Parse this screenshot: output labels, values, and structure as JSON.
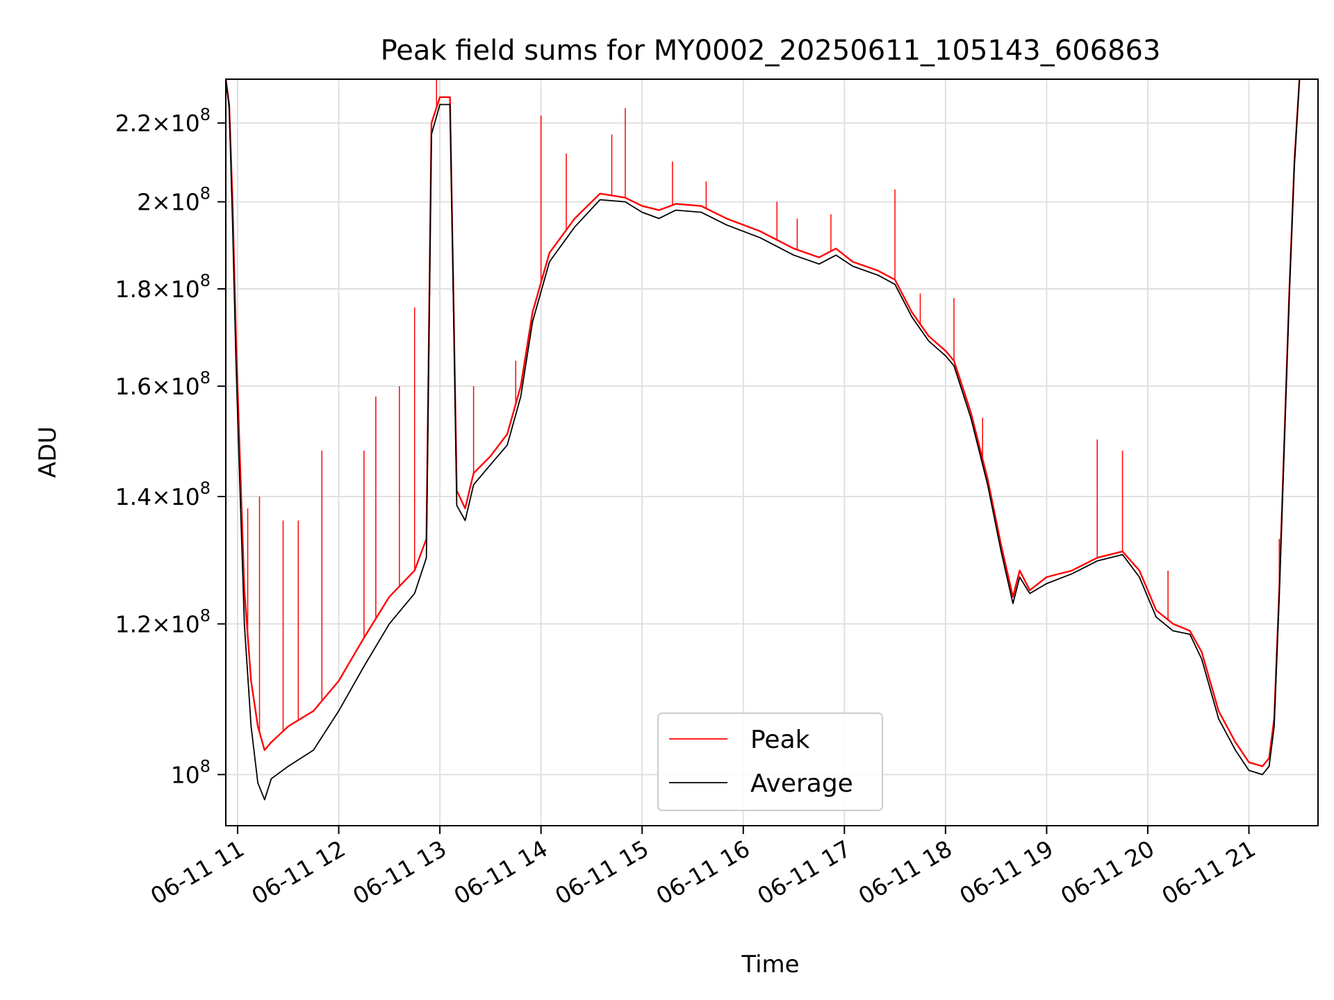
{
  "chart_data": {
    "type": "line",
    "title": "Peak field sums for MY0002_20250611_105143_606863",
    "xlabel": "Time",
    "ylabel": "ADU",
    "y_scale": "log",
    "grid": true,
    "legend_position": "lower-center",
    "xlim": [
      "2025-06-11 10:53",
      "2025-06-11 21:41"
    ],
    "ylim": [
      94000000,
      232000000
    ],
    "x_ticks": [
      {
        "label": "06-11 11",
        "x": "2025-06-11 11:00"
      },
      {
        "label": "06-11 12",
        "x": "2025-06-11 12:00"
      },
      {
        "label": "06-11 13",
        "x": "2025-06-11 13:00"
      },
      {
        "label": "06-11 14",
        "x": "2025-06-11 14:00"
      },
      {
        "label": "06-11 15",
        "x": "2025-06-11 15:00"
      },
      {
        "label": "06-11 16",
        "x": "2025-06-11 16:00"
      },
      {
        "label": "06-11 17",
        "x": "2025-06-11 17:00"
      },
      {
        "label": "06-11 18",
        "x": "2025-06-11 18:00"
      },
      {
        "label": "06-11 19",
        "x": "2025-06-11 19:00"
      },
      {
        "label": "06-11 20",
        "x": "2025-06-11 20:00"
      },
      {
        "label": "06-11 21",
        "x": "2025-06-11 21:00"
      }
    ],
    "y_ticks": [
      {
        "value": 100000000,
        "mantissa": "",
        "exp": "8"
      },
      {
        "value": 120000000,
        "mantissa": "1.2",
        "exp": "8"
      },
      {
        "value": 140000000,
        "mantissa": "1.4",
        "exp": "8"
      },
      {
        "value": 160000000,
        "mantissa": "1.6",
        "exp": "8"
      },
      {
        "value": 180000000,
        "mantissa": "1.8",
        "exp": "8"
      },
      {
        "value": 200000000,
        "mantissa": "2",
        "exp": "8"
      },
      {
        "value": 220000000,
        "mantissa": "2.2",
        "exp": "8"
      }
    ],
    "series": [
      {
        "name": "Peak",
        "color": "#ff0000",
        "points": [
          [
            "2025-06-11 10:53",
            232000000
          ],
          [
            "2025-06-11 10:55",
            225000000
          ],
          [
            "2025-06-11 10:57",
            200000000
          ],
          [
            "2025-06-11 10:59",
            170000000
          ],
          [
            "2025-06-11 11:01",
            150000000
          ],
          [
            "2025-06-11 11:04",
            125000000
          ],
          [
            "2025-06-11 11:08",
            112000000
          ],
          [
            "2025-06-11 11:12",
            106000000
          ],
          [
            "2025-06-11 11:16",
            103000000
          ],
          [
            "2025-06-11 11:20",
            104000000
          ],
          [
            "2025-06-11 11:30",
            106000000
          ],
          [
            "2025-06-11 11:45",
            108000000
          ],
          [
            "2025-06-11 12:00",
            112000000
          ],
          [
            "2025-06-11 12:15",
            118000000
          ],
          [
            "2025-06-11 12:30",
            124000000
          ],
          [
            "2025-06-11 12:45",
            128000000
          ],
          [
            "2025-06-11 12:52",
            133000000
          ],
          [
            "2025-06-11 12:55",
            220000000
          ],
          [
            "2025-06-11 13:00",
            227000000
          ],
          [
            "2025-06-11 13:06",
            227000000
          ],
          [
            "2025-06-11 13:08",
            180000000
          ],
          [
            "2025-06-11 13:10",
            141000000
          ],
          [
            "2025-06-11 13:15",
            138000000
          ],
          [
            "2025-06-11 13:20",
            144000000
          ],
          [
            "2025-06-11 13:30",
            147000000
          ],
          [
            "2025-06-11 13:40",
            151000000
          ],
          [
            "2025-06-11 13:48",
            160000000
          ],
          [
            "2025-06-11 13:55",
            175000000
          ],
          [
            "2025-06-11 14:05",
            188000000
          ],
          [
            "2025-06-11 14:20",
            196000000
          ],
          [
            "2025-06-11 14:35",
            202000000
          ],
          [
            "2025-06-11 14:50",
            201000000
          ],
          [
            "2025-06-11 15:00",
            199000000
          ],
          [
            "2025-06-11 15:10",
            198000000
          ],
          [
            "2025-06-11 15:20",
            199500000
          ],
          [
            "2025-06-11 15:35",
            199000000
          ],
          [
            "2025-06-11 15:50",
            196000000
          ],
          [
            "2025-06-11 16:10",
            193000000
          ],
          [
            "2025-06-11 16:30",
            189000000
          ],
          [
            "2025-06-11 16:45",
            187000000
          ],
          [
            "2025-06-11 16:55",
            189000000
          ],
          [
            "2025-06-11 17:05",
            186000000
          ],
          [
            "2025-06-11 17:20",
            184000000
          ],
          [
            "2025-06-11 17:30",
            182000000
          ],
          [
            "2025-06-11 17:40",
            175000000
          ],
          [
            "2025-06-11 17:50",
            170000000
          ],
          [
            "2025-06-11 18:00",
            167000000
          ],
          [
            "2025-06-11 18:05",
            165000000
          ],
          [
            "2025-06-11 18:15",
            155000000
          ],
          [
            "2025-06-11 18:25",
            143000000
          ],
          [
            "2025-06-11 18:33",
            132000000
          ],
          [
            "2025-06-11 18:40",
            124000000
          ],
          [
            "2025-06-11 18:44",
            128000000
          ],
          [
            "2025-06-11 18:50",
            125000000
          ],
          [
            "2025-06-11 19:00",
            127000000
          ],
          [
            "2025-06-11 19:15",
            128000000
          ],
          [
            "2025-06-11 19:30",
            130000000
          ],
          [
            "2025-06-11 19:45",
            131000000
          ],
          [
            "2025-06-11 19:55",
            128000000
          ],
          [
            "2025-06-11 20:05",
            122000000
          ],
          [
            "2025-06-11 20:15",
            120000000
          ],
          [
            "2025-06-11 20:25",
            119000000
          ],
          [
            "2025-06-11 20:32",
            116000000
          ],
          [
            "2025-06-11 20:42",
            108000000
          ],
          [
            "2025-06-11 20:52",
            104000000
          ],
          [
            "2025-06-11 21:00",
            101500000
          ],
          [
            "2025-06-11 21:08",
            101000000
          ],
          [
            "2025-06-11 21:12",
            102000000
          ],
          [
            "2025-06-11 21:15",
            107000000
          ],
          [
            "2025-06-11 21:18",
            125000000
          ],
          [
            "2025-06-11 21:21",
            150000000
          ],
          [
            "2025-06-11 21:24",
            180000000
          ],
          [
            "2025-06-11 21:27",
            210000000
          ],
          [
            "2025-06-11 21:30",
            232000000
          ]
        ]
      },
      {
        "name": "Average",
        "color": "#000000",
        "points": [
          [
            "2025-06-11 10:53",
            232000000
          ],
          [
            "2025-06-11 10:55",
            224000000
          ],
          [
            "2025-06-11 10:57",
            195000000
          ],
          [
            "2025-06-11 10:59",
            165000000
          ],
          [
            "2025-06-11 11:01",
            145000000
          ],
          [
            "2025-06-11 11:04",
            120000000
          ],
          [
            "2025-06-11 11:08",
            106000000
          ],
          [
            "2025-06-11 11:12",
            99000000
          ],
          [
            "2025-06-11 11:16",
            97000000
          ],
          [
            "2025-06-11 11:20",
            99500000
          ],
          [
            "2025-06-11 11:30",
            101000000
          ],
          [
            "2025-06-11 11:45",
            103000000
          ],
          [
            "2025-06-11 12:00",
            108000000
          ],
          [
            "2025-06-11 12:15",
            114000000
          ],
          [
            "2025-06-11 12:30",
            120000000
          ],
          [
            "2025-06-11 12:45",
            124500000
          ],
          [
            "2025-06-11 12:52",
            130000000
          ],
          [
            "2025-06-11 12:55",
            217000000
          ],
          [
            "2025-06-11 13:00",
            225000000
          ],
          [
            "2025-06-11 13:06",
            225000000
          ],
          [
            "2025-06-11 13:08",
            178000000
          ],
          [
            "2025-06-11 13:10",
            138500000
          ],
          [
            "2025-06-11 13:15",
            136000000
          ],
          [
            "2025-06-11 13:20",
            142000000
          ],
          [
            "2025-06-11 13:30",
            145500000
          ],
          [
            "2025-06-11 13:40",
            149000000
          ],
          [
            "2025-06-11 13:48",
            158000000
          ],
          [
            "2025-06-11 13:55",
            173000000
          ],
          [
            "2025-06-11 14:05",
            186000000
          ],
          [
            "2025-06-11 14:20",
            194000000
          ],
          [
            "2025-06-11 14:35",
            200500000
          ],
          [
            "2025-06-11 14:50",
            200000000
          ],
          [
            "2025-06-11 15:00",
            197500000
          ],
          [
            "2025-06-11 15:10",
            196000000
          ],
          [
            "2025-06-11 15:20",
            198000000
          ],
          [
            "2025-06-11 15:35",
            197500000
          ],
          [
            "2025-06-11 15:50",
            194500000
          ],
          [
            "2025-06-11 16:10",
            191500000
          ],
          [
            "2025-06-11 16:30",
            187500000
          ],
          [
            "2025-06-11 16:45",
            185500000
          ],
          [
            "2025-06-11 16:55",
            187500000
          ],
          [
            "2025-06-11 17:05",
            185000000
          ],
          [
            "2025-06-11 17:20",
            183000000
          ],
          [
            "2025-06-11 17:30",
            181000000
          ],
          [
            "2025-06-11 17:40",
            174000000
          ],
          [
            "2025-06-11 17:50",
            169000000
          ],
          [
            "2025-06-11 18:00",
            166000000
          ],
          [
            "2025-06-11 18:05",
            164000000
          ],
          [
            "2025-06-11 18:15",
            154000000
          ],
          [
            "2025-06-11 18:25",
            142000000
          ],
          [
            "2025-06-11 18:33",
            131000000
          ],
          [
            "2025-06-11 18:40",
            123000000
          ],
          [
            "2025-06-11 18:44",
            127000000
          ],
          [
            "2025-06-11 18:50",
            124500000
          ],
          [
            "2025-06-11 19:00",
            126000000
          ],
          [
            "2025-06-11 19:15",
            127500000
          ],
          [
            "2025-06-11 19:30",
            129500000
          ],
          [
            "2025-06-11 19:45",
            130500000
          ],
          [
            "2025-06-11 19:55",
            127000000
          ],
          [
            "2025-06-11 20:05",
            121000000
          ],
          [
            "2025-06-11 20:15",
            119000000
          ],
          [
            "2025-06-11 20:25",
            118500000
          ],
          [
            "2025-06-11 20:32",
            115000000
          ],
          [
            "2025-06-11 20:42",
            107000000
          ],
          [
            "2025-06-11 20:52",
            103000000
          ],
          [
            "2025-06-11 21:00",
            100500000
          ],
          [
            "2025-06-11 21:08",
            100000000
          ],
          [
            "2025-06-11 21:12",
            101000000
          ],
          [
            "2025-06-11 21:15",
            106000000
          ],
          [
            "2025-06-11 21:18",
            124000000
          ],
          [
            "2025-06-11 21:21",
            149000000
          ],
          [
            "2025-06-11 21:24",
            179000000
          ],
          [
            "2025-06-11 21:27",
            209000000
          ],
          [
            "2025-06-11 21:30",
            232000000
          ]
        ]
      }
    ],
    "peak_spikes": [
      [
        "2025-06-11 11:06",
        138000000
      ],
      [
        "2025-06-11 11:13",
        140000000
      ],
      [
        "2025-06-11 11:27",
        136000000
      ],
      [
        "2025-06-11 11:36",
        136000000
      ],
      [
        "2025-06-11 11:50",
        148000000
      ],
      [
        "2025-06-11 12:15",
        148000000
      ],
      [
        "2025-06-11 12:22",
        158000000
      ],
      [
        "2025-06-11 12:36",
        160000000
      ],
      [
        "2025-06-11 12:45",
        176000000
      ],
      [
        "2025-06-11 12:58",
        232000000
      ],
      [
        "2025-06-11 13:20",
        160000000
      ],
      [
        "2025-06-11 13:45",
        165000000
      ],
      [
        "2025-06-11 14:00",
        222000000
      ],
      [
        "2025-06-11 14:15",
        212000000
      ],
      [
        "2025-06-11 14:42",
        217000000
      ],
      [
        "2025-06-11 14:50",
        224000000
      ],
      [
        "2025-06-11 15:18",
        210000000
      ],
      [
        "2025-06-11 15:38",
        205000000
      ],
      [
        "2025-06-11 16:20",
        200000000
      ],
      [
        "2025-06-11 16:32",
        196000000
      ],
      [
        "2025-06-11 16:52",
        197000000
      ],
      [
        "2025-06-11 17:30",
        203000000
      ],
      [
        "2025-06-11 17:45",
        179000000
      ],
      [
        "2025-06-11 18:05",
        178000000
      ],
      [
        "2025-06-11 18:22",
        154000000
      ],
      [
        "2025-06-11 19:30",
        150000000
      ],
      [
        "2025-06-11 19:45",
        148000000
      ],
      [
        "2025-06-11 20:12",
        128000000
      ],
      [
        "2025-06-11 21:18",
        133000000
      ]
    ]
  }
}
